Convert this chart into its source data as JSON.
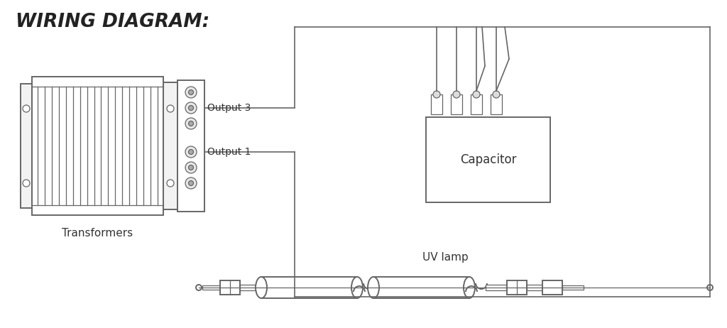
{
  "bg_color": "#ffffff",
  "line_color": "#666666",
  "title": "WIRING DIAGRAM:",
  "label_transformers": "Transformers",
  "label_output3": "Output 3",
  "label_output1": "Output 1",
  "label_capacitor": "Capacitor",
  "label_uvlamp": "UV lamp",
  "lw": 1.4,
  "lw_thin": 0.9,
  "lw_wire": 1.2
}
